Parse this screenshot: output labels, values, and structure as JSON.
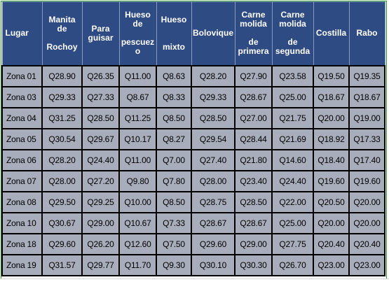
{
  "table": {
    "headers": [
      {
        "lines": [
          "Lugar"
        ],
        "cls": "left"
      },
      {
        "lines": [
          "Manita",
          "de",
          "",
          "Rochoy"
        ]
      },
      {
        "lines": [
          "Para",
          "guisar"
        ]
      },
      {
        "lines": [
          "Hueso",
          "de",
          "",
          "pescuez",
          "o"
        ]
      },
      {
        "lines": [
          "Hueso",
          "",
          "",
          "mixto"
        ]
      },
      {
        "lines": [
          "Bolovique"
        ]
      },
      {
        "lines": [
          "Carne",
          "molida",
          "",
          "de",
          "primera"
        ]
      },
      {
        "lines": [
          "Carne",
          "molida",
          "",
          "de",
          "segunda"
        ]
      },
      {
        "lines": [
          "Costilla"
        ]
      },
      {
        "lines": [
          "Rabo"
        ]
      }
    ],
    "rows": [
      [
        "Zona 01",
        "Q28.90",
        "Q26.35",
        "Q11.00",
        "Q8.63",
        "Q28.20",
        "Q27.90",
        "Q23.58",
        "Q19.50",
        "Q19.35"
      ],
      [
        "Zona 03",
        "Q29.33",
        "Q27.33",
        "Q8.67",
        "Q8.33",
        "Q29.33",
        "Q28.67",
        "Q25.00",
        "Q18.67",
        "Q18.67"
      ],
      [
        "Zona 04",
        "Q31.25",
        "Q28.50",
        "Q11.25",
        "Q8.50",
        "Q28.50",
        "Q27.00",
        "Q21.75",
        "Q20.00",
        "Q19.00"
      ],
      [
        "Zona 05",
        "Q30.54",
        "Q29.67",
        "Q10.17",
        "Q8.27",
        "Q29.54",
        "Q28.44",
        "Q21.69",
        "Q18.92",
        "Q17.33"
      ],
      [
        "Zona 06",
        "Q28.20",
        "Q24.40",
        "Q11.00",
        "Q7.00",
        "Q27.40",
        "Q21.80",
        "Q14.60",
        "Q18.40",
        "Q17.40"
      ],
      [
        "Zona 07",
        "Q28.00",
        "Q27.20",
        "Q9.80",
        "Q7.80",
        "Q28.00",
        "Q23.40",
        "Q24.40",
        "Q19.60",
        "Q19.60"
      ],
      [
        "Zona 08",
        "Q29.50",
        "Q29.25",
        "Q10.00",
        "Q8.50",
        "Q28.75",
        "Q28.50",
        "Q22.00",
        "Q20.50",
        "Q20.00"
      ],
      [
        "Zona 10",
        "Q30.67",
        "Q29.00",
        "Q10.67",
        "Q7.33",
        "Q28.67",
        "Q28.67",
        "Q25.00",
        "Q20.00",
        "Q20.00"
      ],
      [
        "Zona 18",
        "Q29.60",
        "Q26.20",
        "Q12.60",
        "Q7.50",
        "Q29.60",
        "Q29.00",
        "Q27.75",
        "Q20.40",
        "Q20.40"
      ],
      [
        "Zona 19",
        "Q31.57",
        "Q29.77",
        "Q11.70",
        "Q9.30",
        "Q30.10",
        "Q30.30",
        "Q26.70",
        "Q23.00",
        "Q23.00"
      ]
    ]
  }
}
